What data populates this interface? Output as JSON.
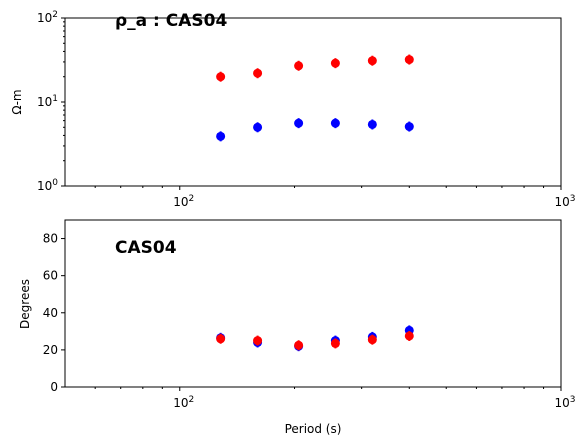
{
  "chart_data": [
    {
      "type": "scatter",
      "title": "ρ_a : CAS04",
      "xlabel": "",
      "ylabel": "Ω-m",
      "x_scale": "log",
      "y_scale": "log",
      "xlim": [
        50,
        1000
      ],
      "ylim": [
        1,
        100
      ],
      "x_ticks": [
        {
          "value": 100,
          "label": "10",
          "exp": "2"
        },
        {
          "value": 1000,
          "label": "10",
          "exp": "3"
        }
      ],
      "y_ticks": [
        {
          "value": 1,
          "label": "10",
          "exp": "0"
        },
        {
          "value": 10,
          "label": "10",
          "exp": "1"
        },
        {
          "value": 100,
          "label": "10",
          "exp": "2"
        }
      ],
      "series": [
        {
          "color": "#0000ff",
          "x": [
            128,
            160,
            205,
            256,
            320,
            400
          ],
          "y": [
            3.9,
            5.0,
            5.6,
            5.6,
            5.4,
            5.1
          ]
        },
        {
          "color": "#ff0000",
          "x": [
            128,
            160,
            205,
            256,
            320,
            400
          ],
          "y": [
            20,
            22,
            27,
            29,
            31,
            32
          ]
        }
      ]
    },
    {
      "type": "scatter",
      "title": "CAS04",
      "xlabel": "Period (s)",
      "ylabel": "Degrees",
      "x_scale": "log",
      "y_scale": "linear",
      "xlim": [
        50,
        1000
      ],
      "ylim": [
        0,
        90
      ],
      "x_ticks": [
        {
          "value": 100,
          "label": "10",
          "exp": "2"
        },
        {
          "value": 1000,
          "label": "10",
          "exp": "3"
        }
      ],
      "y_ticks": [
        {
          "value": 0,
          "label": "0",
          "exp": ""
        },
        {
          "value": 20,
          "label": "20",
          "exp": ""
        },
        {
          "value": 40,
          "label": "40",
          "exp": ""
        },
        {
          "value": 60,
          "label": "60",
          "exp": ""
        },
        {
          "value": 80,
          "label": "80",
          "exp": ""
        }
      ],
      "series": [
        {
          "color": "#0000ff",
          "x": [
            128,
            160,
            205,
            256,
            320,
            400
          ],
          "y": [
            26.5,
            24,
            22,
            25,
            27,
            30.5
          ]
        },
        {
          "color": "#ff0000",
          "x": [
            128,
            160,
            205,
            256,
            320,
            400
          ],
          "y": [
            26,
            25,
            22.5,
            23.5,
            25.5,
            27.5
          ]
        }
      ]
    }
  ]
}
